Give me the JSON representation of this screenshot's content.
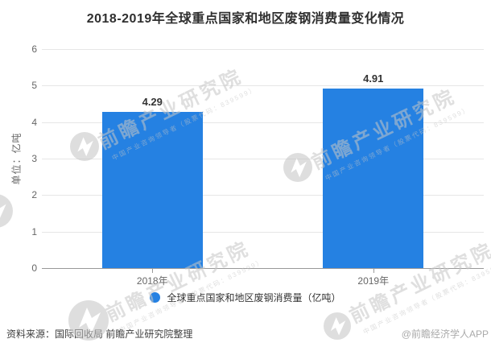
{
  "title": "2018-2019年全球重点国家和地区废钢消费量变化情况",
  "chart_data": {
    "type": "bar",
    "categories": [
      "2018年",
      "2019年"
    ],
    "series": [
      {
        "name": "全球重点国家和地区废钢消费量（亿吨）",
        "values": [
          4.29,
          4.91
        ]
      }
    ],
    "value_labels": [
      "4.29",
      "4.91"
    ],
    "ylabel": "单位：亿吨",
    "ylim": [
      0,
      6
    ],
    "yticks": [
      0,
      1,
      2,
      3,
      4,
      5,
      6
    ],
    "grid": true,
    "legend_position": "bottom",
    "bar_color": "#2581e2"
  },
  "legend": {
    "label": "全球重点国家和地区废钢消费量（亿吨）"
  },
  "footer": {
    "source": "资料来源：国际回收局 前瞻产业研究院整理",
    "credit": "@前瞻经济学人APP"
  },
  "watermark": {
    "brand": "前瞻产业研究院",
    "tagline": "中国产业咨询领导者（股票代码：839599）"
  },
  "colors": {
    "bar": "#2581e2",
    "title_text": "#2f2f2f",
    "axis_text": "#666666",
    "gridline": "#e6e6e6",
    "axis_line": "#999999",
    "value_label": "#333333",
    "legend_text": "#333333",
    "source_text": "#404040",
    "credit_text": "#aaaaaa",
    "watermark": "#c6c6c6"
  }
}
